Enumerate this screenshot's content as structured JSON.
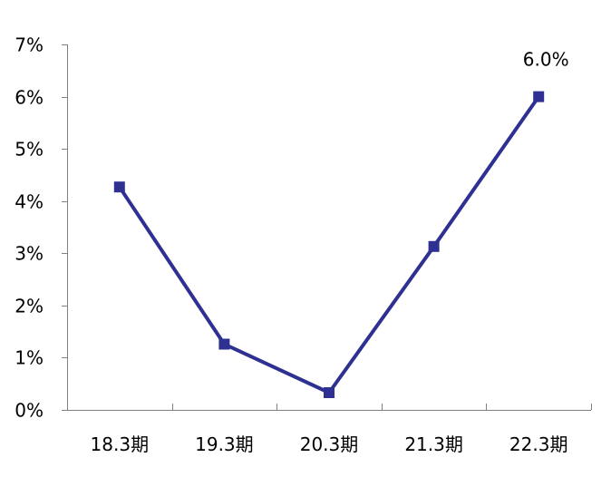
{
  "chart_data": {
    "type": "line",
    "categories": [
      "18.3期",
      "19.3期",
      "20.3期",
      "21.3期",
      "22.3期"
    ],
    "series": [
      {
        "values": [
          4.27,
          1.26,
          0.33,
          3.13,
          6.0
        ],
        "color": "#2E3192",
        "marker": "square"
      }
    ],
    "y_ticks": [
      "0%",
      "1%",
      "2%",
      "3%",
      "4%",
      "5%",
      "6%",
      "7%"
    ],
    "ylim": [
      0,
      7
    ],
    "data_labels": [
      {
        "index": 4,
        "text": "6.0%"
      }
    ],
    "grid": false,
    "legend": "none",
    "title": "",
    "xlabel": "",
    "ylabel": ""
  }
}
